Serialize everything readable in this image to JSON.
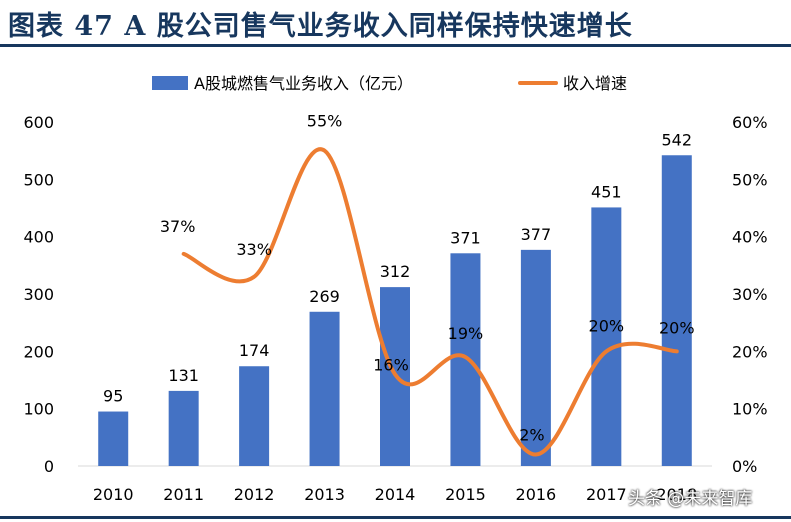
{
  "header": {
    "title": "图表 47  A 股公司售气业务收入同样保持快速增长"
  },
  "chart_data": {
    "type": "bar",
    "categories": [
      "2010",
      "2011",
      "2012",
      "2013",
      "2014",
      "2015",
      "2016",
      "2017",
      "2018"
    ],
    "series": [
      {
        "name": "A股城燃售气业务收入（亿元）",
        "type": "bar",
        "axis": "left",
        "color": "#4472c4",
        "values": [
          95,
          131,
          174,
          269,
          312,
          371,
          377,
          451,
          542
        ],
        "labels": [
          "95",
          "131",
          "174",
          "269",
          "312",
          "371",
          "377",
          "451",
          "542"
        ]
      },
      {
        "name": "收入增速",
        "type": "line",
        "axis": "right",
        "color": "#ed7d31",
        "values": [
          null,
          37,
          33,
          55,
          16,
          19,
          2,
          20,
          20
        ],
        "labels": [
          "",
          "37%",
          "33%",
          "55%",
          "16%",
          "19%",
          "2%",
          "20%",
          "20%"
        ]
      }
    ],
    "y_left": {
      "ylim": [
        0,
        600
      ],
      "ticks": [
        "0",
        "100",
        "200",
        "300",
        "400",
        "500",
        "600"
      ]
    },
    "y_right": {
      "ylim": [
        0,
        60
      ],
      "ticks": [
        "0%",
        "10%",
        "20%",
        "30%",
        "40%",
        "50%",
        "60%"
      ]
    },
    "legend": "top",
    "grid": false
  },
  "watermark": "头条 @未来智库",
  "colors": {
    "title": "#17375e",
    "bar": "#4472c4",
    "line": "#ed7d31",
    "axis": "#d9d9d9"
  }
}
